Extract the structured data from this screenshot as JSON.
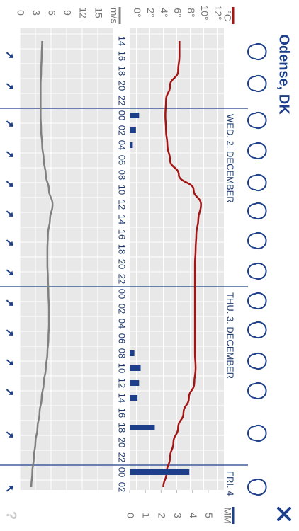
{
  "title": "Odense, DK",
  "chart_data": {
    "type": "line",
    "categories": [
      "14",
      "16",
      "18",
      "20",
      "22",
      "00",
      "02",
      "04",
      "06",
      "08",
      "10",
      "12",
      "14",
      "16",
      "18",
      "20",
      "22",
      "00",
      "02",
      "04",
      "06",
      "08",
      "10",
      "12",
      "14",
      "16",
      "18",
      "20",
      "22",
      "00",
      "02"
    ],
    "day_labels": [
      "WED. 2. DECEMBER",
      "THU. 3. DECEMBER",
      "FRI. 4"
    ],
    "series": [
      {
        "name": "°C",
        "type": "line",
        "axis": "y",
        "color": "#a31515",
        "values": [
          6.4,
          6.4,
          6.2,
          5.0,
          4.4,
          4.3,
          4.4,
          4.6,
          5.0,
          6.3,
          8.5,
          9.6,
          9.2,
          8.9,
          8.8,
          8.7,
          8.7,
          8.7,
          8.7,
          8.7,
          8.7,
          8.7,
          8.8,
          8.6,
          7.8,
          7.0,
          6.2,
          5.5,
          5.0,
          4.5,
          4.0
        ]
      },
      {
        "name": "MM",
        "type": "bar",
        "axis": "y2",
        "color": "#1d3f8a",
        "values": [
          0,
          0,
          0,
          0,
          0,
          0.6,
          0.4,
          0.2,
          0,
          0,
          0,
          0,
          0,
          0,
          0,
          0,
          0,
          0,
          0,
          0,
          0,
          0.3,
          0.7,
          0.6,
          0.5,
          0,
          1.6,
          0,
          0,
          3.8,
          0
        ]
      },
      {
        "name": "m/s",
        "type": "line",
        "axis": "y3",
        "color": "#808080",
        "values": [
          4.3,
          4.2,
          4.1,
          4.0,
          4.0,
          4.0,
          4.1,
          4.3,
          4.6,
          5.0,
          5.6,
          6.3,
          5.8,
          5.4,
          5.3,
          5.3,
          5.4,
          5.5,
          5.6,
          5.6,
          5.5,
          5.3,
          5.0,
          4.6,
          4.2,
          3.8,
          3.4,
          3.0,
          2.7,
          2.4,
          2.2
        ]
      }
    ],
    "ylim": [
      -1,
      13
    ],
    "yticks": [
      {
        "value": 0,
        "label": "0°"
      },
      {
        "value": 2,
        "label": "2°"
      },
      {
        "value": 4,
        "label": "4°"
      },
      {
        "value": 6,
        "label": "6°"
      },
      {
        "value": 8,
        "label": "8°"
      },
      {
        "value": 10,
        "label": "10°"
      },
      {
        "value": 12,
        "label": "12°"
      }
    ],
    "y2lim": [
      0,
      6
    ],
    "y2ticks": [
      0,
      1,
      2,
      3,
      4,
      5
    ],
    "y3lim": [
      0,
      18
    ],
    "y3ticks": [
      0,
      3,
      6,
      9,
      12,
      15
    ],
    "grid": true
  }
}
